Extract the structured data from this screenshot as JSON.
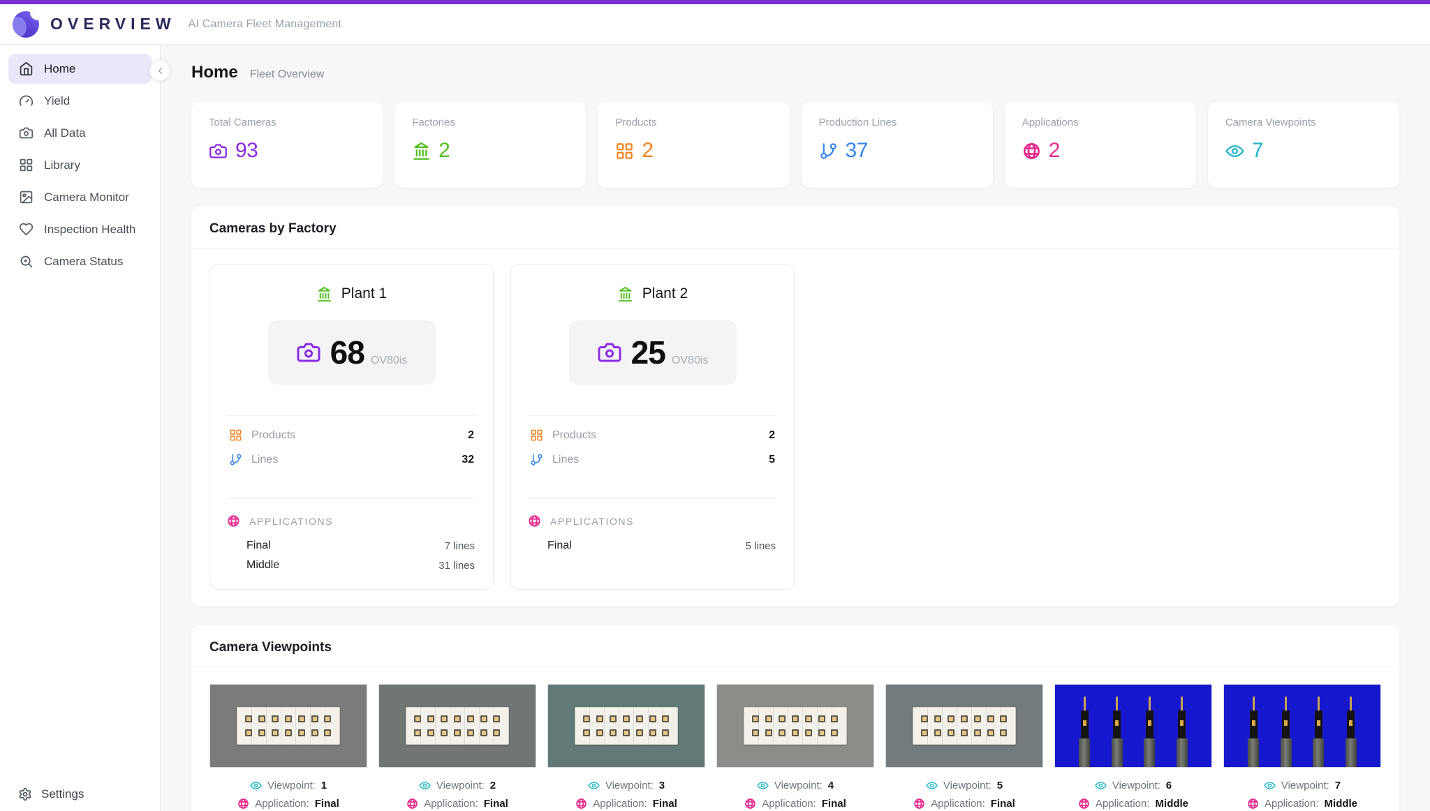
{
  "colors": {
    "accent_bar": "#7a2fd0",
    "purple": "#8b2be2",
    "green": "#52bf1e",
    "orange": "#f5821f",
    "blue": "#3584f2",
    "pink": "#e62a8d",
    "teal": "#1cb5c9"
  },
  "header": {
    "brand": "OVERVIEW",
    "subtitle": "AI Camera Fleet Management"
  },
  "sidebar": {
    "items": [
      {
        "label": "Home",
        "active": true
      },
      {
        "label": "Yield"
      },
      {
        "label": "All Data"
      },
      {
        "label": "Library"
      },
      {
        "label": "Camera Monitor"
      },
      {
        "label": "Inspection Health"
      },
      {
        "label": "Camera Status"
      }
    ],
    "settings_label": "Settings"
  },
  "page": {
    "title": "Home",
    "subtitle": "Fleet Overview"
  },
  "stats": [
    {
      "label": "Total Cameras",
      "value": "93",
      "color": "#8b2be2",
      "icon": "camera-icon"
    },
    {
      "label": "Factories",
      "value": "2",
      "color": "#52bf1e",
      "icon": "landmark-icon"
    },
    {
      "label": "Products",
      "value": "2",
      "color": "#f5821f",
      "icon": "grid-icon"
    },
    {
      "label": "Production Lines",
      "value": "37",
      "color": "#3584f2",
      "icon": "branch-icon"
    },
    {
      "label": "Applications",
      "value": "2",
      "color": "#e62a8d",
      "icon": "globe-icon"
    },
    {
      "label": "Camera Viewpoints",
      "value": "7",
      "color": "#1cb5c9",
      "icon": "eye-icon"
    }
  ],
  "factory_section": {
    "title": "Cameras by Factory",
    "labels": {
      "products": "Products",
      "lines": "Lines",
      "applications": "APPLICATIONS"
    },
    "plants": [
      {
        "name": "Plant 1",
        "camera_count": "68",
        "camera_model": "OV80is",
        "products": "2",
        "lines": "32",
        "applications": [
          {
            "name": "Final",
            "lines": "7 lines"
          },
          {
            "name": "Middle",
            "lines": "31 lines"
          }
        ]
      },
      {
        "name": "Plant 2",
        "camera_count": "25",
        "camera_model": "OV80is",
        "products": "2",
        "lines": "5",
        "applications": [
          {
            "name": "Final",
            "lines": "5 lines"
          }
        ]
      }
    ]
  },
  "viewpoints_section": {
    "title": "Camera Viewpoints",
    "viewpoint_label": "Viewpoint:",
    "application_label": "Application:",
    "cards": [
      {
        "viewpoint": "1",
        "application": "Final",
        "scene": "connector",
        "bg": "#7b7b79"
      },
      {
        "viewpoint": "2",
        "application": "Final",
        "scene": "connector",
        "bg": "#717573"
      },
      {
        "viewpoint": "3",
        "application": "Final",
        "scene": "connector",
        "bg": "#617a78"
      },
      {
        "viewpoint": "4",
        "application": "Final",
        "scene": "connector",
        "bg": "#8c8c88"
      },
      {
        "viewpoint": "5",
        "application": "Final",
        "scene": "connector",
        "bg": "#747b7c"
      },
      {
        "viewpoint": "6",
        "application": "Middle",
        "scene": "probes",
        "bg": "#1718ce"
      },
      {
        "viewpoint": "7",
        "application": "Middle",
        "scene": "probes",
        "bg": "#1718ce"
      }
    ]
  }
}
